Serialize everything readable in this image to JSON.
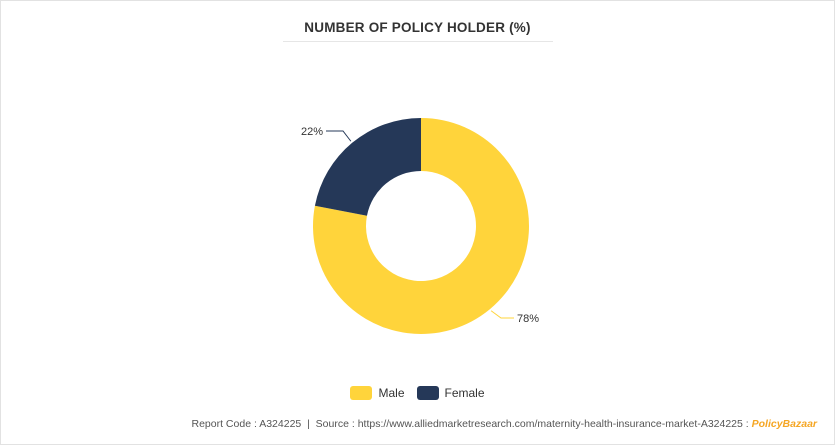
{
  "chart_data": {
    "type": "pie",
    "title": "NUMBER OF POLICY HOLDER (%)",
    "slices": [
      {
        "name": "Male",
        "value": 78,
        "label": "78%",
        "color": "#ffd43b"
      },
      {
        "name": "Female",
        "value": 22,
        "label": "22%",
        "color": "#253858"
      }
    ],
    "donut": true,
    "legend_position": "bottom"
  },
  "footer": {
    "report_code": "Report Code : A324225",
    "separator": "|",
    "source": "Source : https://www.alliedmarketresearch.com/maternity-health-insurance-market-A324225 :",
    "brand": "PolicyBazaar"
  }
}
